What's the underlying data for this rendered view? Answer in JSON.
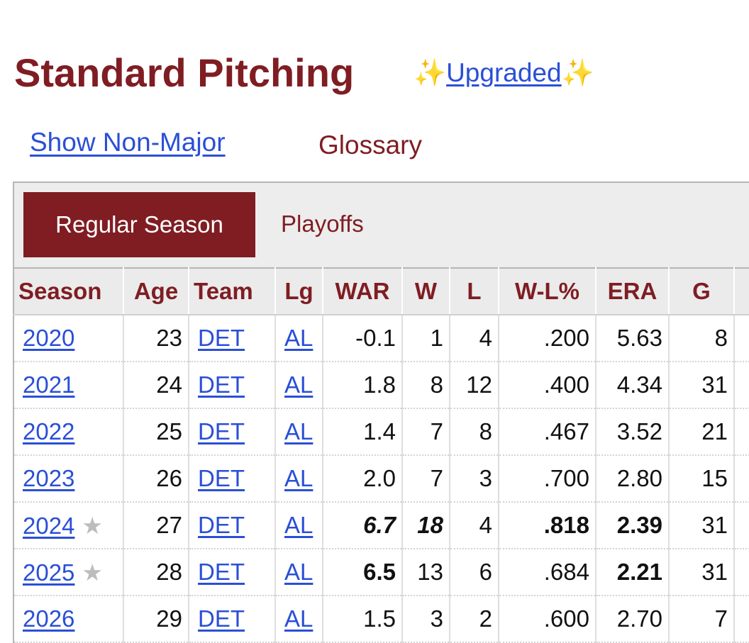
{
  "header": {
    "title": "Standard Pitching",
    "sparkle_glyph": "✨",
    "upgraded_label": "Upgraded"
  },
  "links": {
    "show_non_major": "Show Non-Major",
    "glossary": "Glossary"
  },
  "tabs": {
    "regular_season": "Regular Season",
    "playoffs": "Playoffs",
    "active": "regular_season"
  },
  "colors": {
    "brand": "#7f1d23",
    "link": "#2a4fd6",
    "header_bg": "#ebebeb",
    "star": "#bdbdbd"
  },
  "table": {
    "columns": [
      "Season",
      "Age",
      "Team",
      "Lg",
      "WAR",
      "W",
      "L",
      "W-L%",
      "ERA",
      "G"
    ],
    "star_glyph": "★",
    "rows": [
      {
        "season": "2020",
        "star": false,
        "age": "23",
        "team": "DET",
        "lg": "AL",
        "war": "-0.1",
        "w": "1",
        "l": "4",
        "wl_pct": ".200",
        "era": "5.63",
        "g": "8"
      },
      {
        "season": "2021",
        "star": false,
        "age": "24",
        "team": "DET",
        "lg": "AL",
        "war": "1.8",
        "w": "8",
        "l": "12",
        "wl_pct": ".400",
        "era": "4.34",
        "g": "31"
      },
      {
        "season": "2022",
        "star": false,
        "age": "25",
        "team": "DET",
        "lg": "AL",
        "war": "1.4",
        "w": "7",
        "l": "8",
        "wl_pct": ".467",
        "era": "3.52",
        "g": "21"
      },
      {
        "season": "2023",
        "star": false,
        "age": "26",
        "team": "DET",
        "lg": "AL",
        "war": "2.0",
        "w": "7",
        "l": "3",
        "wl_pct": ".700",
        "era": "2.80",
        "g": "15"
      },
      {
        "season": "2024",
        "star": true,
        "age": "27",
        "team": "DET",
        "lg": "AL",
        "war": "6.7",
        "w": "18",
        "l": "4",
        "wl_pct": ".818",
        "era": "2.39",
        "g": "31"
      },
      {
        "season": "2025",
        "star": true,
        "age": "28",
        "team": "DET",
        "lg": "AL",
        "war": "6.5",
        "w": "13",
        "l": "6",
        "wl_pct": ".684",
        "era": "2.21",
        "g": "31"
      },
      {
        "season": "2026",
        "star": false,
        "age": "29",
        "team": "DET",
        "lg": "AL",
        "war": "1.5",
        "w": "3",
        "l": "2",
        "wl_pct": ".600",
        "era": "2.70",
        "g": "7"
      }
    ]
  }
}
